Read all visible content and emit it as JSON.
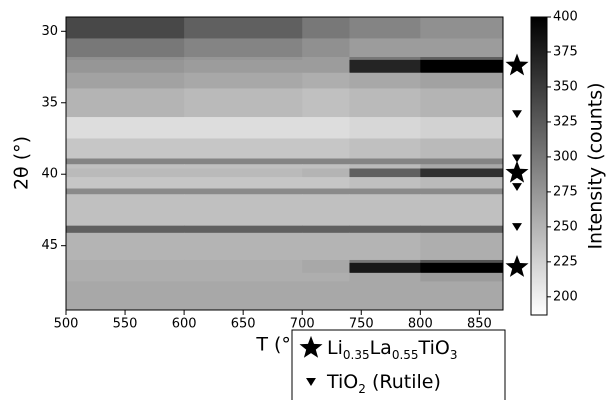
{
  "chart_data": {
    "type": "heatmap",
    "x_label": "T (°C)",
    "y_label": "2θ (°)",
    "colorbar_label": "Intensity (counts)",
    "colormap": "gray_r",
    "xlim": [
      500,
      870
    ],
    "xticks": [
      500,
      550,
      600,
      650,
      700,
      750,
      800,
      850
    ],
    "ylim": [
      29,
      49.5
    ],
    "yticks": [
      30,
      35,
      40,
      45
    ],
    "y_inverted": true,
    "clim": [
      187,
      400
    ],
    "cticks": [
      200,
      225,
      250,
      275,
      300,
      325,
      350,
      375,
      400
    ],
    "x_bins": [
      500,
      600,
      700,
      740,
      800,
      870
    ],
    "y_bins": [
      29,
      30.5,
      31.8,
      32.0,
      32.9,
      34,
      36,
      37.5,
      38.9,
      39.3,
      39.6,
      40.2,
      41,
      41.4,
      43.6,
      44.1,
      46,
      46.2,
      46.9,
      47.5,
      49.5
    ],
    "z": [
      [
        340,
        320,
        300,
        290,
        280
      ],
      [
        300,
        290,
        280,
        270,
        270
      ],
      [
        280,
        275,
        270,
        300,
        320
      ],
      [
        275,
        270,
        270,
        370,
        400
      ],
      [
        265,
        260,
        255,
        260,
        265
      ],
      [
        250,
        245,
        240,
        245,
        250
      ],
      [
        215,
        215,
        215,
        220,
        225
      ],
      [
        235,
        235,
        235,
        240,
        245
      ],
      [
        290,
        290,
        290,
        290,
        290
      ],
      [
        240,
        240,
        240,
        245,
        260
      ],
      [
        245,
        245,
        250,
        320,
        360
      ],
      [
        235,
        235,
        235,
        240,
        245
      ],
      [
        285,
        285,
        285,
        285,
        285
      ],
      [
        240,
        240,
        240,
        240,
        240
      ],
      [
        320,
        320,
        320,
        320,
        320
      ],
      [
        250,
        250,
        250,
        250,
        255
      ],
      [
        255,
        255,
        260,
        300,
        330
      ],
      [
        255,
        255,
        260,
        380,
        400
      ],
      [
        255,
        255,
        255,
        260,
        270
      ],
      [
        260,
        260,
        260,
        260,
        260
      ]
    ],
    "series": [
      {
        "name": [
          "Li",
          "0.35",
          "La",
          "0.55",
          "TiO",
          "3"
        ],
        "marker": "star",
        "color": "#000000",
        "values": [
          32.4,
          39.9,
          46.5
        ]
      },
      {
        "name": [
          "TiO",
          "2",
          " (Rutile)"
        ],
        "marker": "triangle-down",
        "color": "#000000",
        "values": [
          35.8,
          38.9,
          40.9,
          43.7
        ]
      }
    ]
  }
}
